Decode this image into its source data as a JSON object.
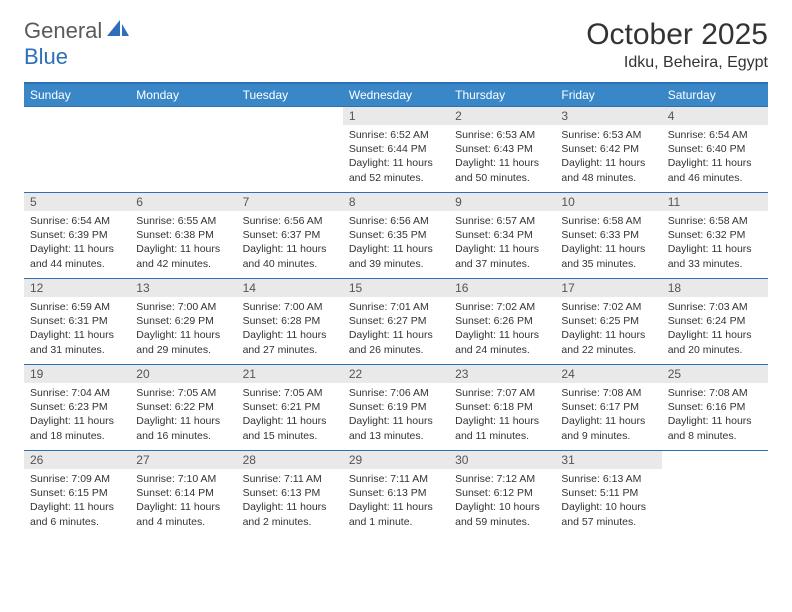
{
  "brand": {
    "part1": "General",
    "part2": "Blue"
  },
  "title": "October 2025",
  "location": "Idku, Beheira, Egypt",
  "colors": {
    "header_bg": "#3a87c8",
    "border": "#2d6fb8",
    "daynum_bg": "#e9e9e9",
    "text": "#333333"
  },
  "weekdays": [
    "Sunday",
    "Monday",
    "Tuesday",
    "Wednesday",
    "Thursday",
    "Friday",
    "Saturday"
  ],
  "weeks": [
    [
      null,
      null,
      null,
      {
        "n": "1",
        "sr": "6:52 AM",
        "ss": "6:44 PM",
        "dl": "11 hours and 52 minutes."
      },
      {
        "n": "2",
        "sr": "6:53 AM",
        "ss": "6:43 PM",
        "dl": "11 hours and 50 minutes."
      },
      {
        "n": "3",
        "sr": "6:53 AM",
        "ss": "6:42 PM",
        "dl": "11 hours and 48 minutes."
      },
      {
        "n": "4",
        "sr": "6:54 AM",
        "ss": "6:40 PM",
        "dl": "11 hours and 46 minutes."
      }
    ],
    [
      {
        "n": "5",
        "sr": "6:54 AM",
        "ss": "6:39 PM",
        "dl": "11 hours and 44 minutes."
      },
      {
        "n": "6",
        "sr": "6:55 AM",
        "ss": "6:38 PM",
        "dl": "11 hours and 42 minutes."
      },
      {
        "n": "7",
        "sr": "6:56 AM",
        "ss": "6:37 PM",
        "dl": "11 hours and 40 minutes."
      },
      {
        "n": "8",
        "sr": "6:56 AM",
        "ss": "6:35 PM",
        "dl": "11 hours and 39 minutes."
      },
      {
        "n": "9",
        "sr": "6:57 AM",
        "ss": "6:34 PM",
        "dl": "11 hours and 37 minutes."
      },
      {
        "n": "10",
        "sr": "6:58 AM",
        "ss": "6:33 PM",
        "dl": "11 hours and 35 minutes."
      },
      {
        "n": "11",
        "sr": "6:58 AM",
        "ss": "6:32 PM",
        "dl": "11 hours and 33 minutes."
      }
    ],
    [
      {
        "n": "12",
        "sr": "6:59 AM",
        "ss": "6:31 PM",
        "dl": "11 hours and 31 minutes."
      },
      {
        "n": "13",
        "sr": "7:00 AM",
        "ss": "6:29 PM",
        "dl": "11 hours and 29 minutes."
      },
      {
        "n": "14",
        "sr": "7:00 AM",
        "ss": "6:28 PM",
        "dl": "11 hours and 27 minutes."
      },
      {
        "n": "15",
        "sr": "7:01 AM",
        "ss": "6:27 PM",
        "dl": "11 hours and 26 minutes."
      },
      {
        "n": "16",
        "sr": "7:02 AM",
        "ss": "6:26 PM",
        "dl": "11 hours and 24 minutes."
      },
      {
        "n": "17",
        "sr": "7:02 AM",
        "ss": "6:25 PM",
        "dl": "11 hours and 22 minutes."
      },
      {
        "n": "18",
        "sr": "7:03 AM",
        "ss": "6:24 PM",
        "dl": "11 hours and 20 minutes."
      }
    ],
    [
      {
        "n": "19",
        "sr": "7:04 AM",
        "ss": "6:23 PM",
        "dl": "11 hours and 18 minutes."
      },
      {
        "n": "20",
        "sr": "7:05 AM",
        "ss": "6:22 PM",
        "dl": "11 hours and 16 minutes."
      },
      {
        "n": "21",
        "sr": "7:05 AM",
        "ss": "6:21 PM",
        "dl": "11 hours and 15 minutes."
      },
      {
        "n": "22",
        "sr": "7:06 AM",
        "ss": "6:19 PM",
        "dl": "11 hours and 13 minutes."
      },
      {
        "n": "23",
        "sr": "7:07 AM",
        "ss": "6:18 PM",
        "dl": "11 hours and 11 minutes."
      },
      {
        "n": "24",
        "sr": "7:08 AM",
        "ss": "6:17 PM",
        "dl": "11 hours and 9 minutes."
      },
      {
        "n": "25",
        "sr": "7:08 AM",
        "ss": "6:16 PM",
        "dl": "11 hours and 8 minutes."
      }
    ],
    [
      {
        "n": "26",
        "sr": "7:09 AM",
        "ss": "6:15 PM",
        "dl": "11 hours and 6 minutes."
      },
      {
        "n": "27",
        "sr": "7:10 AM",
        "ss": "6:14 PM",
        "dl": "11 hours and 4 minutes."
      },
      {
        "n": "28",
        "sr": "7:11 AM",
        "ss": "6:13 PM",
        "dl": "11 hours and 2 minutes."
      },
      {
        "n": "29",
        "sr": "7:11 AM",
        "ss": "6:13 PM",
        "dl": "11 hours and 1 minute."
      },
      {
        "n": "30",
        "sr": "7:12 AM",
        "ss": "6:12 PM",
        "dl": "10 hours and 59 minutes."
      },
      {
        "n": "31",
        "sr": "6:13 AM",
        "ss": "5:11 PM",
        "dl": "10 hours and 57 minutes."
      },
      null
    ]
  ],
  "labels": {
    "sunrise": "Sunrise:",
    "sunset": "Sunset:",
    "daylight": "Daylight:"
  }
}
